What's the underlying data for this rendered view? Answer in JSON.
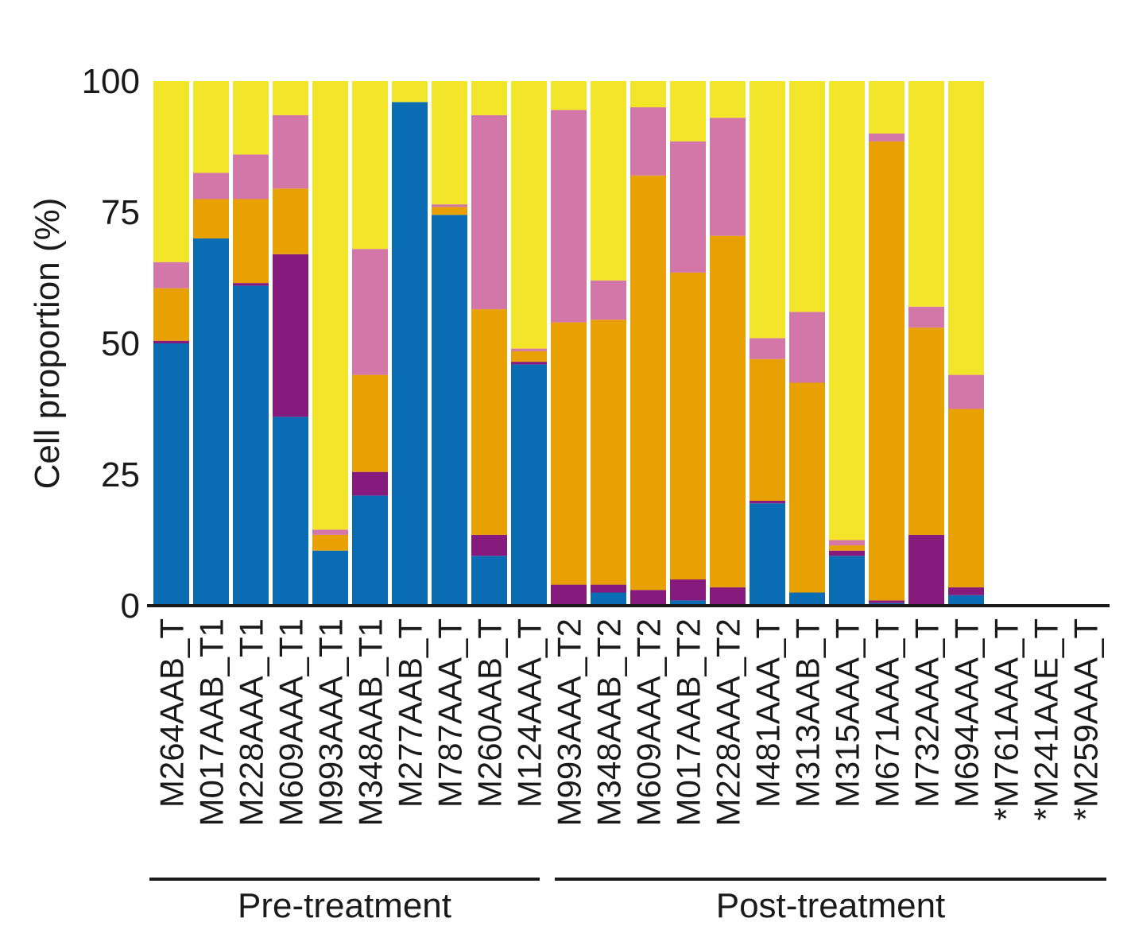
{
  "chart_data": {
    "type": "bar",
    "stacked": true,
    "ylabel": "Cell proportion (%)",
    "ylim": [
      0,
      100
    ],
    "yticks": [
      0,
      25,
      50,
      75,
      100
    ],
    "categories": [
      "M264AAB_T",
      "M017AAB_T1",
      "M228AAA_T1",
      "M609AAA_T1",
      "M993AAA_T1",
      "M348AAB_T1",
      "M277AAB_T",
      "M787AAA_T",
      "M260AAB_T",
      "M124AAA_T",
      "M993AAA_T2",
      "M348AAB_T2",
      "M609AAA_T2",
      "M017AAB_T2",
      "M228AAA_T2",
      "M481AAA_T",
      "M313AAB_T",
      "M315AAA_T",
      "M671AAA_T",
      "M732AAA_T",
      "M694AAA_T",
      "*M761AAA_T",
      "*M241AAE_T",
      "*M259AAA_T"
    ],
    "series": [
      {
        "color": "#0a6cb3",
        "values": [
          50,
          70,
          61,
          36,
          10.5,
          21,
          96,
          74.5,
          9.5,
          46,
          0,
          2.5,
          0,
          1,
          0,
          19.5,
          2.5,
          9.5,
          0.5,
          0,
          2,
          0,
          0,
          0
        ]
      },
      {
        "color": "#871a7d",
        "values": [
          0.5,
          0,
          0.5,
          31,
          0,
          4.5,
          0,
          0,
          4,
          0.5,
          4,
          1.5,
          3,
          4,
          3.5,
          0.5,
          0,
          1,
          0.5,
          13.5,
          1.5,
          0,
          0,
          0
        ]
      },
      {
        "color": "#e8a002",
        "values": [
          10,
          7.5,
          16,
          12.5,
          3,
          18.5,
          0,
          1.5,
          43,
          2,
          50,
          50.5,
          79,
          58.5,
          67,
          27,
          40,
          1,
          87.5,
          39.5,
          34,
          0,
          0,
          0
        ]
      },
      {
        "color": "#d277a8",
        "values": [
          5,
          5,
          8.5,
          14,
          1,
          24,
          0,
          0.5,
          37,
          0.5,
          40.5,
          7.5,
          13,
          25,
          22.5,
          4,
          13.5,
          1,
          1.5,
          4,
          6.5,
          0,
          0,
          0
        ]
      },
      {
        "color": "#f2e52a",
        "values": [
          34.5,
          17.5,
          14,
          6.5,
          85.5,
          32,
          4,
          23.5,
          6.5,
          51,
          5.5,
          38,
          5,
          11.5,
          7,
          49,
          44,
          87.5,
          10,
          43,
          56,
          0,
          0,
          0
        ]
      }
    ],
    "groups": [
      {
        "label": "Pre-treatment",
        "from": 0,
        "to": 9
      },
      {
        "label": "Post-treatment",
        "from": 10,
        "to": 23
      }
    ]
  }
}
